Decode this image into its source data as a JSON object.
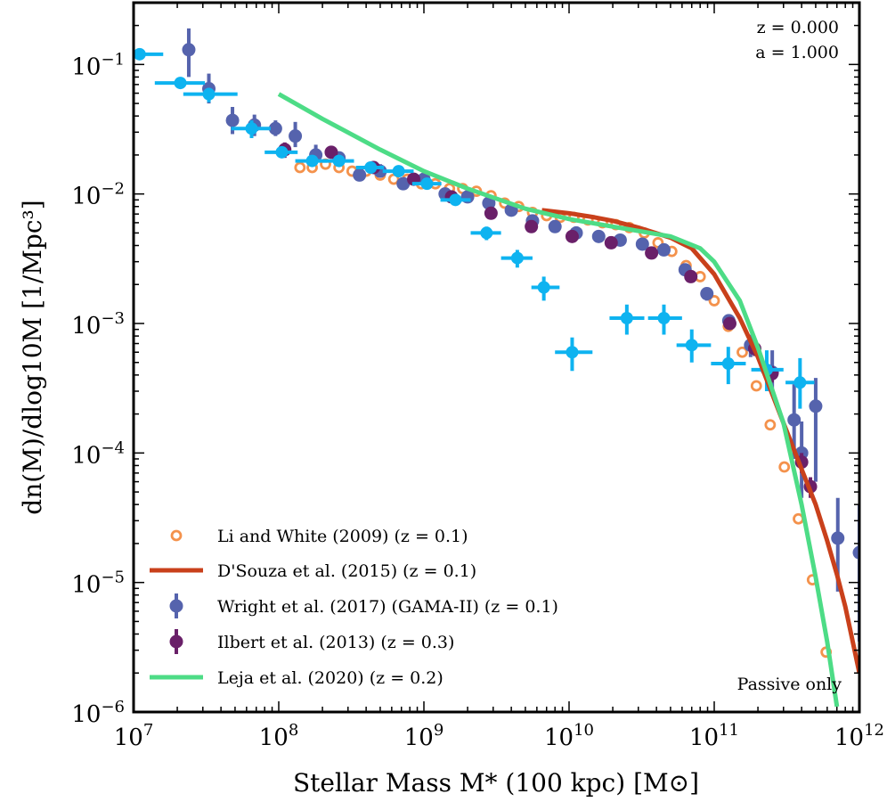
{
  "chart_data": {
    "type": "scatter",
    "xscale": "log",
    "yscale": "log",
    "xlim": [
      10000000.0,
      1000000000000.0
    ],
    "ylim": [
      1e-06,
      0.3
    ],
    "xlabel": "Stellar Mass M* (100 kpc) [M⊙]",
    "ylabel": "dn(M)/dlog10M [1/Mpc³]",
    "x_ticks": [
      {
        "base": "10",
        "exp": "7"
      },
      {
        "base": "10",
        "exp": "8"
      },
      {
        "base": "10",
        "exp": "9"
      },
      {
        "base": "10",
        "exp": "10"
      },
      {
        "base": "10",
        "exp": "11"
      },
      {
        "base": "10",
        "exp": "12"
      }
    ],
    "y_ticks": [
      {
        "base": "10",
        "exp": "−6"
      },
      {
        "base": "10",
        "exp": "−5"
      },
      {
        "base": "10",
        "exp": "−4"
      },
      {
        "base": "10",
        "exp": "−3"
      },
      {
        "base": "10",
        "exp": "−2"
      },
      {
        "base": "10",
        "exp": "−1"
      }
    ],
    "annotations": {
      "redshift": "z = 0.000",
      "scale_factor": "a = 1.000",
      "note": "Passive only"
    },
    "legend_position": "lower-left",
    "grid": false,
    "series": [
      {
        "name": "Li and White (2009) (z = 0.1)",
        "style": "open-circle",
        "color": "#f4924c",
        "x": [
          140000000.0,
          170000000.0,
          210000000.0,
          260000000.0,
          320000000.0,
          400000000.0,
          500000000.0,
          620000000.0,
          770000000.0,
          960000000.0,
          1200000000.0,
          1500000000.0,
          1850000000.0,
          2300000000.0,
          2900000000.0,
          3600000000.0,
          4500000000.0,
          5600000000.0,
          7000000000.0,
          8700000000.0,
          10800000000.0,
          13500000000.0,
          17000000000.0,
          21000000000.0,
          26000000000.0,
          33000000000.0,
          41000000000.0,
          51000000000.0,
          64000000000.0,
          80000000000.0,
          100000000000.0,
          125000000000.0,
          156000000000.0,
          195000000000.0,
          243000000000.0,
          304000000000.0,
          380000000000.0,
          475000000000.0,
          590000000000.0
        ],
        "y": [
          0.016,
          0.016,
          0.017,
          0.016,
          0.015,
          0.015,
          0.014,
          0.013,
          0.013,
          0.012,
          0.012,
          0.011,
          0.011,
          0.0105,
          0.0097,
          0.0085,
          0.008,
          0.0072,
          0.0068,
          0.0066,
          0.0066,
          0.0063,
          0.006,
          0.0058,
          0.0055,
          0.005,
          0.0042,
          0.0036,
          0.0028,
          0.0023,
          0.0015,
          0.00095,
          0.0006,
          0.00033,
          0.000165,
          7.8e-05,
          3.1e-05,
          1.05e-05,
          2.9e-06
        ]
      },
      {
        "name": "D'Souza et al. (2015) (z = 0.1)",
        "style": "line",
        "color": "#c9401b",
        "x": [
          6500000000.0,
          10000000000.0,
          15000000000.0,
          20000000000.0,
          30000000000.0,
          50000000000.0,
          70000000000.0,
          100000000000.0,
          150000000000.0,
          200000000000.0,
          300000000000.0,
          400000000000.0,
          500000000000.0,
          600000000000.0,
          700000000000.0,
          800000000000.0,
          1000000000000.0
        ],
        "y": [
          0.0075,
          0.0071,
          0.0066,
          0.0062,
          0.0055,
          0.0046,
          0.0038,
          0.0024,
          0.0011,
          0.00055,
          0.00017,
          7.5e-05,
          4e-05,
          2.1e-05,
          1.15e-05,
          6.5e-06,
          2e-06
        ]
      },
      {
        "name": "Wright et al. (2017) (GAMA-II) (z = 0.1)",
        "style": "point-errorbar",
        "color": "#5563ad",
        "x": [
          24000000.0,
          33000000.0,
          48000000.0,
          68000000.0,
          95000000.0,
          130000000.0,
          180000000.0,
          260000000.0,
          360000000.0,
          500000000.0,
          720000000.0,
          1000000000.0,
          1400000000.0,
          2000000000.0,
          2800000000.0,
          4000000000.0,
          5600000000.0,
          8000000000.0,
          11200000000.0,
          16000000000.0,
          22500000000.0,
          32000000000.0,
          45000000000.0,
          63000000000.0,
          89000000000.0,
          126000000000.0,
          178000000000.0,
          251000000000.0,
          355000000000.0,
          400000000000.0,
          500000000000.0,
          710000000000.0,
          1000000000000.0
        ],
        "y": [
          0.13,
          0.065,
          0.037,
          0.034,
          0.032,
          0.028,
          0.02,
          0.019,
          0.014,
          0.015,
          0.012,
          0.013,
          0.01,
          0.0095,
          0.0085,
          0.0075,
          0.0062,
          0.0056,
          0.005,
          0.0047,
          0.0044,
          0.0041,
          0.0037,
          0.0026,
          0.0017,
          0.00105,
          0.00068,
          0.00042,
          0.00018,
          0.0001,
          0.00023,
          2.2e-05,
          1.7e-05
        ],
        "y_lo": [
          0.08,
          0.05,
          0.029,
          0.028,
          0.028,
          0.023,
          0.017,
          0.017,
          0.013,
          0.0135,
          0.011,
          0.012,
          0.0095,
          0.009,
          0.008,
          0.0071,
          0.0059,
          0.0053,
          0.0047,
          0.0044,
          0.0042,
          0.0039,
          0.0035,
          0.0024,
          0.0015,
          0.00094,
          0.00055,
          0.00028,
          9e-05,
          4.5e-05,
          6e-05,
          8.5e-06,
          3.5e-06
        ],
        "y_hi": [
          0.19,
          0.085,
          0.047,
          0.041,
          0.037,
          0.036,
          0.024,
          0.021,
          0.016,
          0.017,
          0.013,
          0.014,
          0.011,
          0.01,
          0.0091,
          0.008,
          0.0066,
          0.0059,
          0.0053,
          0.005,
          0.0047,
          0.0044,
          0.0039,
          0.0028,
          0.0019,
          0.00118,
          0.00082,
          0.00062,
          0.00034,
          0.000175,
          0.00038,
          4.5e-05,
          4e-05
        ]
      },
      {
        "name": "Ilbert et al. (2013) (z = 0.3)",
        "style": "point-errorbar",
        "color": "#6a2069",
        "x": [
          110000000.0,
          230000000.0,
          450000000.0,
          850000000.0,
          1550000000.0,
          2900000000.0,
          5500000000.0,
          10500000000.0,
          19500000000.0,
          37000000000.0,
          69000000000.0,
          128000000000.0,
          190000000000.0,
          250000000000.0,
          400000000000.0,
          460000000000.0
        ],
        "y": [
          0.022,
          0.021,
          0.016,
          0.013,
          0.0095,
          0.0071,
          0.0056,
          0.0047,
          0.0042,
          0.0035,
          0.0023,
          0.001,
          0.00064,
          0.00041,
          8.5e-05,
          5.5e-05
        ],
        "y_lo": [
          0.019,
          0.019,
          0.0145,
          0.012,
          0.0088,
          0.0066,
          0.0052,
          0.0044,
          0.0039,
          0.0032,
          0.0021,
          0.00092,
          0.00056,
          0.00035,
          7e-05,
          4.5e-05
        ],
        "y_hi": [
          0.025,
          0.023,
          0.0175,
          0.014,
          0.0102,
          0.0076,
          0.006,
          0.005,
          0.0045,
          0.0038,
          0.0025,
          0.00108,
          0.00072,
          0.00047,
          0.0001,
          6.5e-05
        ]
      },
      {
        "name": "Leja et al. (2020) (z = 0.2)",
        "style": "line",
        "color": "#4ddc86",
        "x": [
          100000000.0,
          200000000.0,
          500000000.0,
          1000000000.0,
          2000000000.0,
          5000000000.0,
          10000000000.0,
          20000000000.0,
          50000000000.0,
          80000000000.0,
          100000000000.0,
          150000000000.0,
          200000000000.0,
          300000000000.0,
          400000000000.0,
          500000000000.0,
          600000000000.0,
          700000000000.0
        ],
        "y": [
          0.059,
          0.038,
          0.022,
          0.015,
          0.011,
          0.0077,
          0.0064,
          0.0056,
          0.0047,
          0.0038,
          0.003,
          0.0015,
          0.00065,
          0.00017,
          4e-05,
          1.1e-05,
          3.5e-06,
          1.1e-06
        ]
      },
      {
        "name": "",
        "style": "point-errorbar-xbar",
        "color": "#0eb3f0",
        "x": [
          11000000.0,
          21000000.0,
          33000000.0,
          65000000.0,
          105000000.0,
          170000000.0,
          260000000.0,
          430000000.0,
          670000000.0,
          1050000000.0,
          1650000000.0,
          2700000000.0,
          4400000000.0,
          6700000000.0,
          10500000000.0,
          25000000000.0,
          45000000000.0,
          70000000000.0,
          125000000000.0,
          230000000000.0,
          390000000000.0
        ],
        "y": [
          0.12,
          0.072,
          0.059,
          0.032,
          0.021,
          0.018,
          0.018,
          0.016,
          0.015,
          0.012,
          0.009,
          0.005,
          0.0032,
          0.0019,
          0.0006,
          0.0011,
          0.0011,
          0.00068,
          0.00049,
          0.00044,
          0.00035
        ],
        "x_lo": [
          7000000.0,
          14000000.0,
          22000000.0,
          47000000.0,
          80000000.0,
          130000000.0,
          200000000.0,
          340000000.0,
          520000000.0,
          830000000.0,
          1300000000.0,
          2100000000.0,
          3400000000.0,
          5500000000.0,
          8000000000.0,
          19000000000.0,
          35000000000.0,
          55000000000.0,
          95000000000.0,
          180000000000.0,
          310000000000.0
        ],
        "x_hi": [
          16000000.0,
          31000000.0,
          52000000.0,
          88000000.0,
          135000000.0,
          215000000.0,
          330000000.0,
          530000000.0,
          850000000.0,
          1320000000.0,
          2100000000.0,
          3400000000.0,
          5600000000.0,
          8600000000.0,
          14500000000.0,
          33000000000.0,
          60000000000.0,
          95000000000.0,
          165000000000.0,
          300000000000.0,
          490000000000.0
        ],
        "y_lo": [
          0.11,
          0.067,
          0.051,
          0.027,
          0.019,
          0.0165,
          0.0165,
          0.0145,
          0.0135,
          0.011,
          0.0082,
          0.0044,
          0.0027,
          0.0015,
          0.00043,
          0.00082,
          0.00082,
          0.0005,
          0.00034,
          0.0003,
          0.00022
        ],
        "y_hi": [
          0.13,
          0.078,
          0.066,
          0.037,
          0.023,
          0.0195,
          0.0195,
          0.0175,
          0.0165,
          0.013,
          0.0098,
          0.0056,
          0.0037,
          0.0023,
          0.00078,
          0.0014,
          0.0014,
          0.0009,
          0.00066,
          0.00062,
          0.00054
        ]
      }
    ]
  }
}
